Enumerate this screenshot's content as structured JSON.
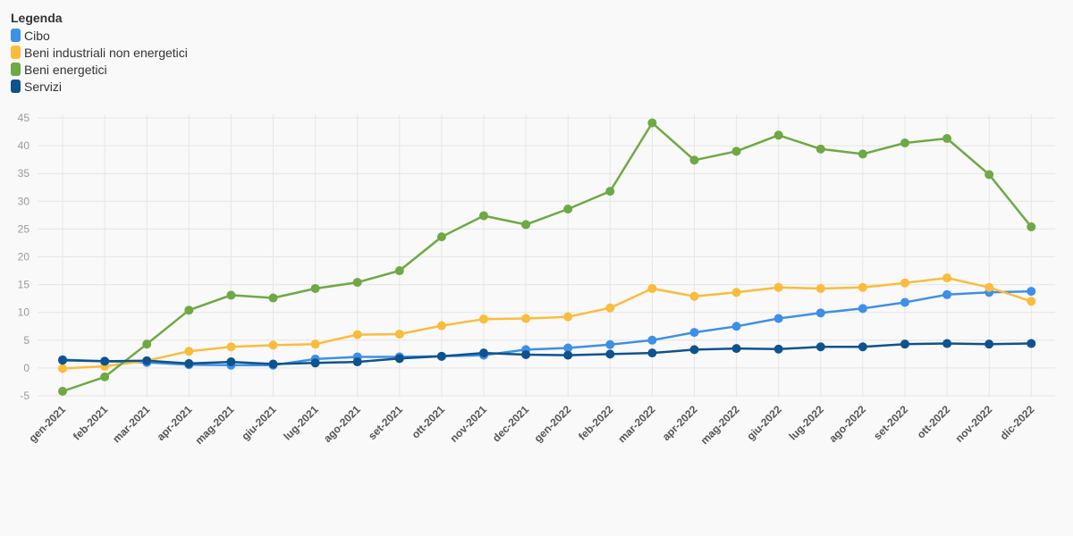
{
  "chart_data": {
    "type": "line",
    "legend_title": "Legenda",
    "legend_position": "top-left",
    "grid": true,
    "x": [
      "gen-2021",
      "feb-2021",
      "mar-2021",
      "apr-2021",
      "mag-2021",
      "giu-2021",
      "lug-2021",
      "ago-2021",
      "set-2021",
      "ott-2021",
      "nov-2021",
      "dec-2021",
      "gen-2022",
      "feb-2022",
      "mar-2022",
      "apr-2022",
      "mag-2022",
      "giu-2022",
      "lug-2022",
      "ago-2022",
      "set-2022",
      "ott-2022",
      "nov-2022",
      "dic-2022"
    ],
    "y_ticks": [
      "45",
      "40",
      "35",
      "30",
      "25",
      "20",
      "15",
      "10",
      "5",
      "0",
      "-5"
    ],
    "ylim": [
      -5,
      45
    ],
    "series": [
      {
        "name": "Cibo",
        "color": "#3d8fe8",
        "values": [
          1.5,
          1.2,
          1.0,
          0.6,
          0.5,
          0.5,
          1.6,
          2.0,
          2.0,
          2.1,
          2.3,
          3.3,
          3.6,
          4.2,
          5.0,
          6.4,
          7.5,
          8.9,
          9.9,
          10.7,
          11.8,
          13.2,
          13.6,
          13.8
        ]
      },
      {
        "name": "Beni industriali non energetici",
        "color": "#fbbc3c",
        "values": [
          -0.1,
          0.3,
          1.3,
          3.0,
          3.8,
          4.1,
          4.3,
          6.0,
          6.1,
          7.6,
          8.8,
          8.9,
          9.2,
          10.8,
          14.3,
          12.9,
          13.6,
          14.5,
          14.3,
          14.5,
          15.3,
          16.2,
          14.5,
          12.0
        ]
      },
      {
        "name": "Beni energetici",
        "color": "#6ea944",
        "values": [
          -4.2,
          -1.6,
          4.3,
          10.4,
          13.1,
          12.6,
          14.3,
          15.4,
          17.5,
          23.6,
          27.4,
          25.8,
          28.6,
          31.8,
          44.1,
          37.4,
          39.0,
          41.9,
          39.4,
          38.5,
          40.5,
          41.3,
          34.8,
          25.4
        ]
      },
      {
        "name": "Servizi",
        "color": "#0e538e",
        "values": [
          1.4,
          1.2,
          1.3,
          0.8,
          1.1,
          0.7,
          0.9,
          1.1,
          1.7,
          2.1,
          2.7,
          2.4,
          2.3,
          2.5,
          2.7,
          3.3,
          3.5,
          3.4,
          3.8,
          3.8,
          4.3,
          4.4,
          4.3,
          4.4
        ]
      }
    ]
  }
}
